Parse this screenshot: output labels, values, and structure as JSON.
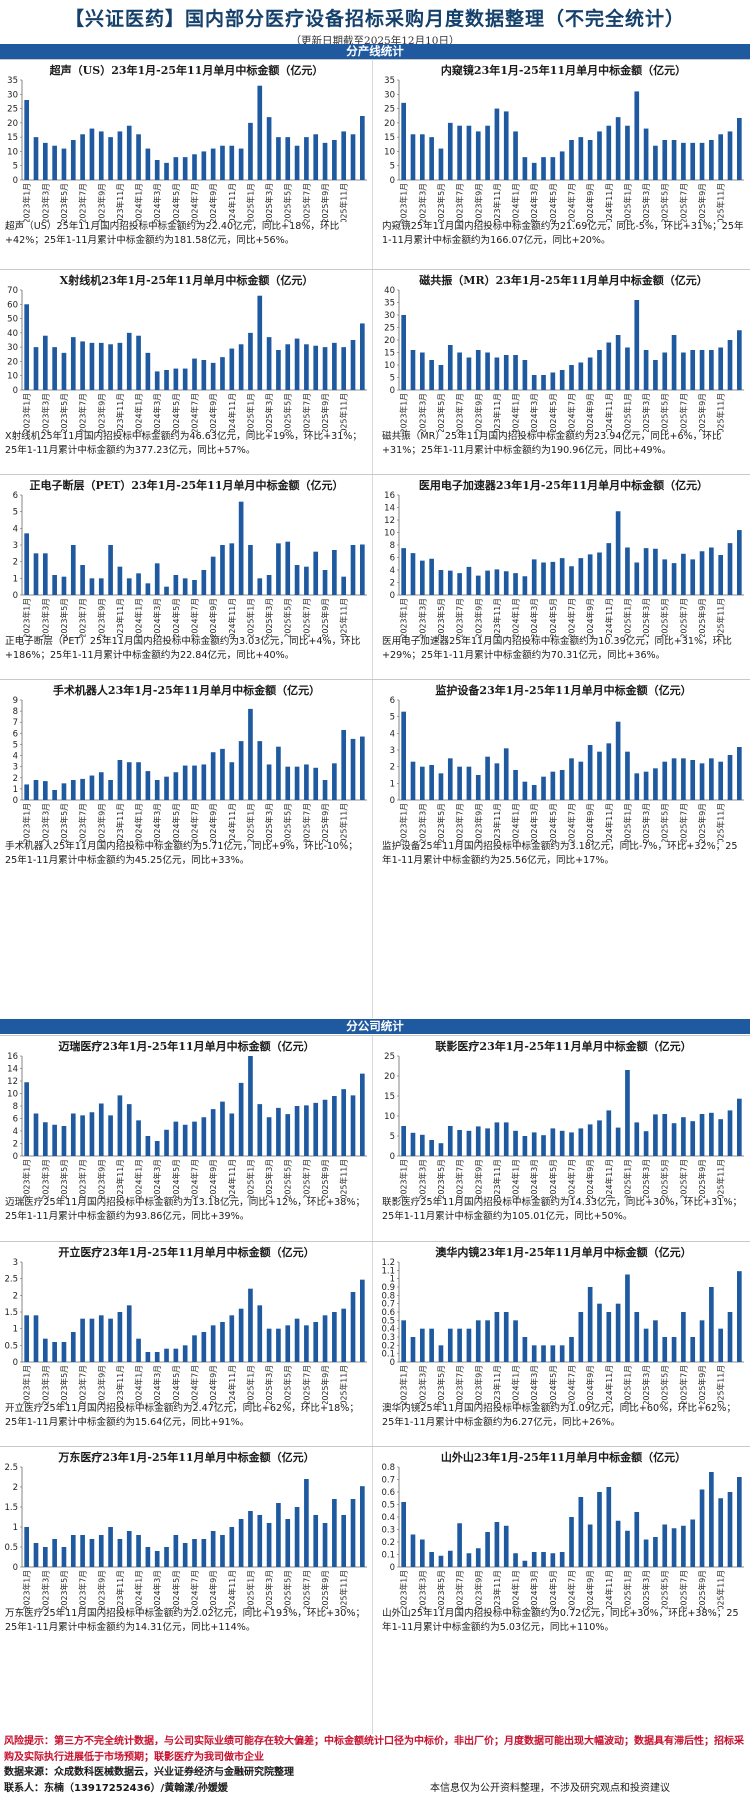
{
  "header": {
    "title": "【兴证医药】国内部分医疗设备招标采购月度数据整理（不完全统计）",
    "date": "（更新日期截至2025年12月10日）"
  },
  "sections": {
    "product": "分产线统计",
    "company": "分公司统计"
  },
  "colors": {
    "bar": "#1f5aa0",
    "section_bar": "#1f5aa0",
    "risk": "#c8102e"
  },
  "x_ticks": [
    "2023年1月",
    "2023年3月",
    "2023年5月",
    "2023年7月",
    "2023年9月",
    "2023年11月",
    "2024年1月",
    "2024年3月",
    "2024年5月",
    "2024年7月",
    "2024年9月",
    "2024年11月",
    "2025年1月",
    "2025年3月",
    "2025年5月",
    "2025年7月",
    "2025年9月",
    "2025年11月"
  ],
  "chart_data": [
    {
      "type": "bar",
      "title": "超声（US）23年1月-25年11月单月中标金额（亿元）",
      "ylim": [
        0,
        35
      ],
      "yticks": [
        0,
        5,
        10,
        15,
        20,
        25,
        30,
        35
      ],
      "values": [
        28,
        15,
        13,
        12,
        11,
        14,
        16,
        18,
        17,
        15,
        17,
        19,
        16,
        11,
        7,
        6,
        8,
        8,
        9,
        10,
        11,
        12,
        12,
        11,
        20,
        33,
        22,
        15,
        15,
        12,
        15,
        16,
        13,
        14,
        17,
        16,
        22.4
      ],
      "caption": "超声（US）25年11月国内招投标中标金额约为22.40亿元，同比+18%，环比+42%；25年1-11月累计中标金额约为181.58亿元，同比+56%。"
    },
    {
      "type": "bar",
      "title": "内窥镜23年1月-25年11月单月中标金额（亿元）",
      "ylim": [
        0,
        35
      ],
      "yticks": [
        0,
        5,
        10,
        15,
        20,
        25,
        30,
        35
      ],
      "values": [
        27,
        16,
        16,
        15,
        11,
        20,
        19,
        19,
        17,
        19,
        25,
        24,
        17,
        8,
        6,
        8,
        8,
        10,
        14,
        15,
        14,
        17,
        19,
        22,
        19,
        31,
        18,
        12,
        14,
        14,
        13,
        13,
        13,
        14,
        16,
        17,
        21.7
      ],
      "caption": "内窥镜25年11月国内招投标中标金额约为21.69亿元，同比-5%，环比+31%；25年1-11月累计中标金额约为166.07亿元，同比+20%。"
    },
    {
      "type": "bar",
      "title": "X射线机23年1月-25年11月单月中标金额（亿元）",
      "ylim": [
        0,
        70
      ],
      "yticks": [
        0,
        10,
        20,
        30,
        40,
        50,
        60,
        70
      ],
      "values": [
        60,
        30,
        38,
        30,
        26,
        37,
        34,
        33,
        33,
        32,
        33,
        40,
        38,
        26,
        13,
        14,
        15,
        15,
        22,
        21,
        19,
        23,
        29,
        32,
        40,
        66,
        37,
        28,
        32,
        36,
        32,
        31,
        30,
        33,
        30,
        35,
        46.6
      ],
      "caption": "X射线机25年11月国内招投标中标金额约为46.63亿元，同比+19%，环比+31%；25年1-11月累计中标金额约为377.23亿元，同比+57%。"
    },
    {
      "type": "bar",
      "title": "磁共振（MR）23年1月-25年11月单月中标金额（亿元）",
      "ylim": [
        0,
        40
      ],
      "yticks": [
        0,
        5,
        10,
        15,
        20,
        25,
        30,
        35,
        40
      ],
      "values": [
        30,
        16,
        15,
        12,
        10,
        18,
        15,
        13,
        16,
        15,
        13,
        14,
        14,
        12,
        6,
        6,
        7,
        8,
        10,
        11,
        13,
        16,
        19,
        22,
        17,
        36,
        16,
        12,
        15,
        22,
        15,
        16,
        16,
        16,
        17,
        20,
        23.9
      ],
      "caption": "磁共振（MR）25年11月国内招投标中标金额约为23.94亿元，同比+6%，环比+31%；25年1-11月累计中标金额约为190.96亿元，同比+49%。"
    },
    {
      "type": "bar",
      "title": "正电子断层（PET）23年1月-25年11月单月中标金额（亿元）",
      "ylim": [
        0,
        6
      ],
      "yticks": [
        0,
        1,
        2,
        3,
        4,
        5,
        6
      ],
      "values": [
        3.7,
        2.5,
        2.5,
        1.2,
        1.1,
        3,
        1.8,
        1,
        1.0,
        3,
        1.7,
        1,
        1.3,
        0.7,
        1.9,
        0.5,
        1.2,
        1,
        0.9,
        1.5,
        2.3,
        3,
        3.1,
        5.6,
        3,
        1,
        1.2,
        3.1,
        3.2,
        1.8,
        1.7,
        2.6,
        1.5,
        2.7,
        1.1,
        3,
        3.03
      ],
      "caption": "正电子断层（PET）25年11月国内招投标中标金额约为3.03亿元，同比+4%，环比+186%；25年1-11月累计中标金额约为22.84亿元，同比+40%。"
    },
    {
      "type": "bar",
      "title": "医用电子加速器23年1月-25年11月单月中标金额（亿元）",
      "ylim": [
        0,
        16
      ],
      "yticks": [
        0,
        2,
        4,
        6,
        8,
        10,
        12,
        14,
        16
      ],
      "values": [
        7.5,
        6.7,
        5.5,
        5.8,
        4,
        3.9,
        3.5,
        4.5,
        3.1,
        3.9,
        4.1,
        3.8,
        3.5,
        3,
        5.7,
        5.2,
        5.3,
        5.9,
        4.6,
        5.9,
        6.5,
        6.8,
        8.3,
        13.4,
        7.6,
        5.2,
        7.5,
        7.4,
        5.7,
        5.1,
        6.6,
        5.7,
        7,
        7.6,
        6.4,
        8.3,
        10.39
      ],
      "caption": "医用电子加速器25年11月国内招投标中标金额约为10.39亿元，同比+31%，环比+29%；25年1-11月累计中标金额约为70.31亿元，同比+36%。"
    },
    {
      "type": "bar",
      "title": "手术机器人23年1月-25年11月单月中标金额（亿元）",
      "ylim": [
        0,
        9
      ],
      "yticks": [
        0,
        1,
        2,
        3,
        4,
        5,
        6,
        7,
        8,
        9
      ],
      "values": [
        1.4,
        1.8,
        1.7,
        0.9,
        1.5,
        1.8,
        1.9,
        2.2,
        2.5,
        1.8,
        3.6,
        3.4,
        3.4,
        2.6,
        1.8,
        2.1,
        2.5,
        3.1,
        3.1,
        3.2,
        4.3,
        4.6,
        3.4,
        5.3,
        8.2,
        5.3,
        3.2,
        4.8,
        3,
        3,
        3.2,
        2.9,
        1.8,
        3.3,
        6.3,
        5.5,
        5.71
      ],
      "caption": "手术机器人25年11月国内招投标中标金额约为5.71亿元，同比+9%，环比-10%；25年1-11月累计中标金额约为45.25亿元，同比+33%。"
    },
    {
      "type": "bar",
      "title": "监护设备23年1月-25年11月单月中标金额（亿元）",
      "ylim": [
        0,
        6
      ],
      "yticks": [
        0,
        1,
        2,
        3,
        4,
        5,
        6
      ],
      "values": [
        5.3,
        2.3,
        2,
        2.1,
        1.6,
        2.5,
        2,
        2,
        1.5,
        2.6,
        2.2,
        3.1,
        1.8,
        1.1,
        0.9,
        1.4,
        1.7,
        1.8,
        2.5,
        2.3,
        3.3,
        2.9,
        3.4,
        4.7,
        2.9,
        1.6,
        1.7,
        1.9,
        2.3,
        2.5,
        2.5,
        2.4,
        2.2,
        2.5,
        2.3,
        2.7,
        3.18
      ],
      "caption": "监护设备25年11月国内招投标中标金额约为3.18亿元，同比-7%，环比+32%；25年1-11月累计中标金额约为25.56亿元，同比+17%。"
    },
    {
      "type": "bar",
      "title": "迈瑞医疗23年1月-25年11月单月中标金额（亿元）",
      "ylim": [
        0,
        16
      ],
      "yticks": [
        0,
        2,
        4,
        6,
        8,
        10,
        12,
        14,
        16
      ],
      "values": [
        11.8,
        6.8,
        5.4,
        5,
        4.8,
        6.8,
        6.5,
        7,
        8.4,
        6.5,
        9.7,
        8.3,
        5.7,
        3.2,
        2.4,
        4.2,
        5.5,
        5,
        5.5,
        6.2,
        7.5,
        8.7,
        6.8,
        11.7,
        16,
        8.3,
        6.2,
        7.7,
        6.7,
        8,
        8.1,
        8.5,
        9,
        9.6,
        10.7,
        9.7,
        13.18
      ],
      "caption": "迈瑞医疗25年11月国内招投标中标金额约为13.18亿元，同比+12%，环比+38%；25年1-11月累计中标金额约为93.86亿元，同比+39%。"
    },
    {
      "type": "bar",
      "title": "联影医疗23年1月-25年11月单月中标金额（亿元）",
      "ylim": [
        0,
        25
      ],
      "yticks": [
        0,
        5,
        10,
        15,
        20,
        25
      ],
      "values": [
        7.5,
        5.8,
        5.3,
        4,
        3.2,
        7.5,
        6.5,
        6.3,
        7.4,
        6.9,
        8.4,
        8.4,
        6.3,
        5,
        5.9,
        5.2,
        6.9,
        6.3,
        5.9,
        6.9,
        7.9,
        8.9,
        11.4,
        7.1,
        21.5,
        8.4,
        6.2,
        10.4,
        10.5,
        8.2,
        9.7,
        8.7,
        10.5,
        10.8,
        9.2,
        11.4,
        14.33
      ],
      "caption": "联影医疗25年11月国内招投标中标金额约为14.33亿元，同比+30%，环比+31%；25年1-11月累计中标金额约为105.01亿元，同比+50%。"
    },
    {
      "type": "bar",
      "title": "开立医疗23年1月-25年11月单月中标金额（亿元）",
      "ylim": [
        0,
        3
      ],
      "yticks": [
        0,
        0.5,
        1,
        1.5,
        2,
        2.5,
        3
      ],
      "values": [
        1.4,
        1.4,
        0.7,
        0.6,
        0.6,
        0.9,
        1.3,
        1.3,
        1.4,
        1.3,
        1.5,
        1.7,
        0.7,
        0.3,
        0.3,
        0.4,
        0.4,
        0.5,
        0.8,
        0.9,
        1.1,
        1.2,
        1.4,
        1.6,
        2.2,
        1.7,
        1,
        1,
        1.1,
        1.3,
        1.1,
        1.2,
        1.4,
        1.5,
        1.6,
        2.1,
        2.47
      ],
      "caption": "开立医疗25年11月国内招投标中标金额约为2.47亿元，同比+62%，环比+18%；25年1-11月累计中标金额约为15.64亿元，同比+91%。"
    },
    {
      "type": "bar",
      "title": "澳华内镜23年1月-25年11月单月中标金额（亿元）",
      "ylim": [
        0,
        1.2
      ],
      "yticks": [
        0,
        0.1,
        0.2,
        0.3,
        0.4,
        0.5,
        0.6,
        0.7,
        0.8,
        0.9,
        1,
        1.1,
        1.2
      ],
      "values": [
        0.5,
        0.3,
        0.4,
        0.4,
        0.2,
        0.4,
        0.4,
        0.4,
        0.5,
        0.5,
        0.6,
        0.6,
        0.5,
        0.3,
        0.2,
        0.2,
        0.2,
        0.2,
        0.3,
        0.6,
        0.9,
        0.7,
        0.6,
        0.7,
        1.05,
        0.6,
        0.4,
        0.5,
        0.3,
        0.3,
        0.6,
        0.3,
        0.5,
        0.9,
        0.4,
        0.6,
        1.09
      ],
      "caption": "澳华内镜25年11月国内招投标中标金额约为1.09亿元，同比+60%，环比+62%；25年1-11月累计中标金额约为6.27亿元，同比+26%。"
    },
    {
      "type": "bar",
      "title": "万东医疗23年1月-25年11月单月中标金额（亿元）",
      "ylim": [
        0,
        2.5
      ],
      "yticks": [
        0,
        0.5,
        1,
        1.5,
        2,
        2.5
      ],
      "values": [
        1,
        0.6,
        0.5,
        0.7,
        0.5,
        0.8,
        0.8,
        0.7,
        0.8,
        1,
        0.7,
        0.9,
        0.8,
        0.5,
        0.4,
        0.5,
        0.8,
        0.6,
        0.7,
        0.7,
        0.9,
        0.8,
        1,
        1.2,
        1.4,
        1.3,
        1.1,
        1.6,
        1.2,
        1.5,
        2.2,
        1.3,
        1.1,
        1.7,
        1.3,
        1.7,
        2.02
      ],
      "caption": "万东医疗25年11月国内招投标中标金额约为2.02亿元，同比+193%，环比+30%；25年1-11月累计中标金额约为14.31亿元，同比+114%。"
    },
    {
      "type": "bar",
      "title": "山外山23年1月-25年11月单月中标金额（亿元）",
      "ylim": [
        0,
        0.8
      ],
      "yticks": [
        0,
        0.1,
        0.2,
        0.3,
        0.4,
        0.5,
        0.6,
        0.7,
        0.8
      ],
      "values": [
        0.52,
        0.26,
        0.22,
        0.12,
        0.09,
        0.13,
        0.35,
        0.11,
        0.15,
        0.28,
        0.36,
        0.33,
        0.11,
        0.05,
        0.12,
        0.12,
        0.11,
        0.12,
        0.4,
        0.56,
        0.34,
        0.6,
        0.64,
        0.37,
        0.29,
        0.44,
        0.22,
        0.24,
        0.34,
        0.31,
        0.33,
        0.38,
        0.62,
        0.76,
        0.55,
        0.6,
        0.72
      ],
      "caption": "山外山25年11月国内招投标中标金额约为0.72亿元，同比+30%，环比+38%；25年1-11月累计中标金额约为5.03亿元，同比+110%。"
    }
  ],
  "footer": {
    "risk": "风险提示：第三方不完全统计数据，与公司实际业绩可能存在较大偏差；中标金额统计口径为中标价，非出厂价；月度数据可能出现大幅波动；数据具有滞后性；招标采购及实际执行进展低于市场预期；联影医疗为我司做市企业",
    "source": "数据来源：众成数科医械数据云，兴业证券经济与金融研究院整理",
    "contact": "联系人：东楠（13917252436）/黄翰漾/孙媛媛",
    "disclaimer": "本信息仅为公开资料整理，不涉及研究观点和投资建议"
  }
}
